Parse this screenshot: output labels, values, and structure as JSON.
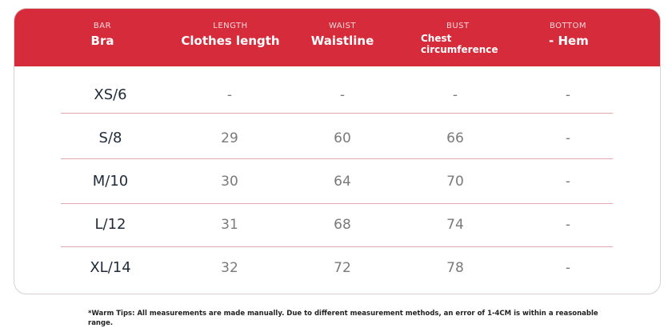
{
  "header": {
    "columns": [
      {
        "sub": "BAR",
        "main": "Bra"
      },
      {
        "sub": "LENGTH",
        "main": "Clothes length"
      },
      {
        "sub": "WAIST",
        "main": "Waistline"
      },
      {
        "sub": "BUST",
        "main": "Chest circumference"
      },
      {
        "sub": "BOTTOM",
        "main": "- Hem"
      }
    ]
  },
  "table": {
    "rows": [
      {
        "size": "XS/6",
        "length": "-",
        "waist": "-",
        "bust": "-",
        "bottom": "-"
      },
      {
        "size": "S/8",
        "length": "29",
        "waist": "60",
        "bust": "66",
        "bottom": "-"
      },
      {
        "size": "M/10",
        "length": "30",
        "waist": "64",
        "bust": "70",
        "bottom": "-"
      },
      {
        "size": "L/12",
        "length": "31",
        "waist": "68",
        "bust": "74",
        "bottom": "-"
      },
      {
        "size": "XL/14",
        "length": "32",
        "waist": "72",
        "bust": "78",
        "bottom": "-"
      }
    ]
  },
  "tips": "*Warm Tips: All measurements are made manually. Due to different measurement methods, an error of 1-4CM is within a reasonable range.",
  "colors": {
    "header": "#d52b3b",
    "divider": "#e5a9ae"
  }
}
